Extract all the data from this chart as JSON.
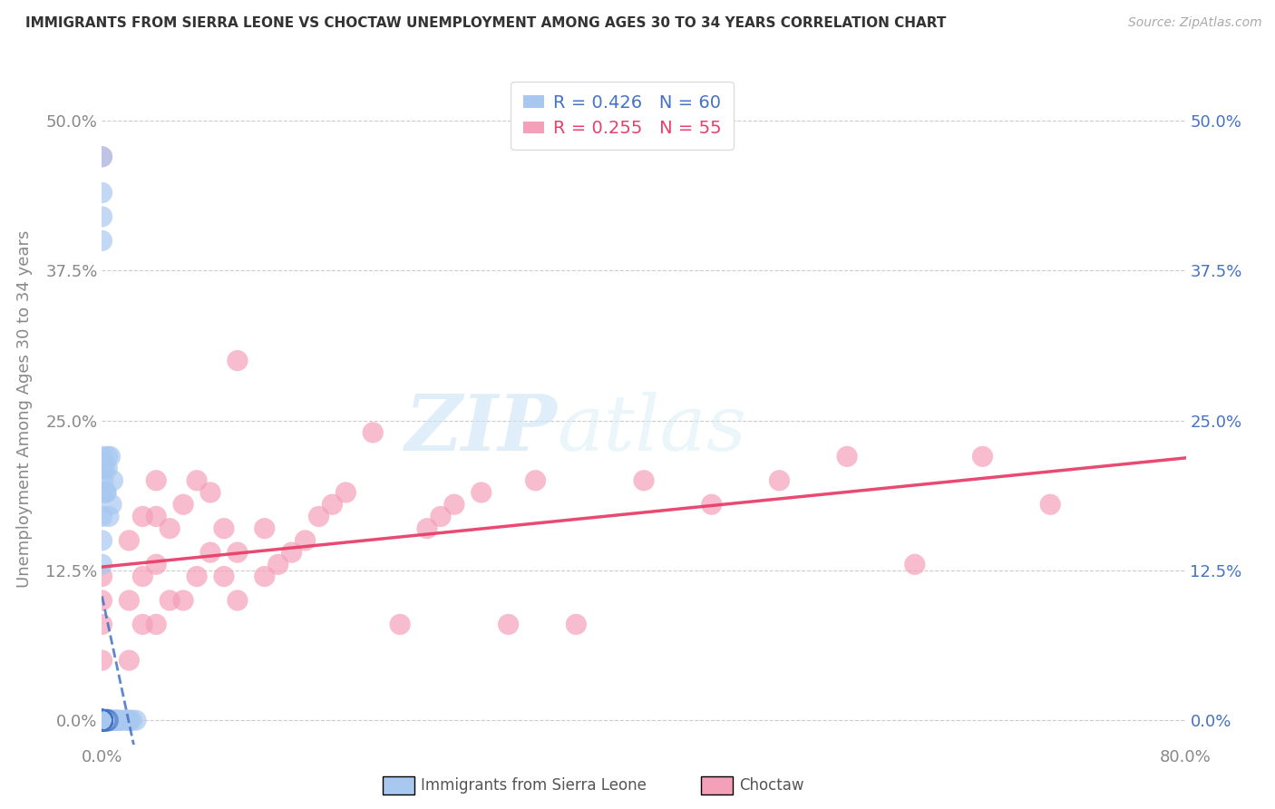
{
  "title": "IMMIGRANTS FROM SIERRA LEONE VS CHOCTAW UNEMPLOYMENT AMONG AGES 30 TO 34 YEARS CORRELATION CHART",
  "source": "Source: ZipAtlas.com",
  "ylabel": "Unemployment Among Ages 30 to 34 years",
  "ytick_labels": [
    "0.0%",
    "12.5%",
    "25.0%",
    "37.5%",
    "50.0%"
  ],
  "ytick_values": [
    0.0,
    0.125,
    0.25,
    0.375,
    0.5
  ],
  "xlim": [
    0.0,
    0.8
  ],
  "ylim": [
    -0.02,
    0.54
  ],
  "legend_blue_R": "R = 0.426",
  "legend_blue_N": "N = 60",
  "legend_pink_R": "R = 0.255",
  "legend_pink_N": "N = 55",
  "legend_label_blue": "Immigrants from Sierra Leone",
  "legend_label_pink": "Choctaw",
  "blue_color": "#a8c8f0",
  "pink_color": "#f4a0b8",
  "blue_line_color": "#4472c4",
  "pink_line_color": "#e8406a",
  "watermark_zip": "ZIP",
  "watermark_atlas": "atlas",
  "blue_scatter_x": [
    0.0,
    0.0,
    0.0,
    0.0,
    0.0,
    0.0,
    0.0,
    0.0,
    0.0,
    0.0,
    0.0,
    0.0,
    0.0,
    0.0,
    0.0,
    0.0,
    0.0,
    0.0,
    0.0,
    0.0,
    0.002,
    0.003,
    0.004,
    0.005,
    0.005,
    0.006,
    0.007,
    0.008,
    0.009,
    0.01,
    0.01,
    0.011,
    0.012,
    0.013,
    0.015,
    0.018,
    0.02,
    0.02,
    0.022,
    0.025,
    0.003,
    0.004,
    0.005,
    0.006,
    0.007,
    0.008,
    0.001,
    0.002,
    0.003,
    0.004,
    0.0,
    0.0,
    0.0,
    0.0,
    0.0,
    0.0,
    0.0,
    0.0,
    0.0,
    0.0
  ],
  "blue_scatter_y": [
    0.0,
    0.0,
    0.0,
    0.0,
    0.0,
    0.0,
    0.0,
    0.0,
    0.0,
    0.0,
    0.0,
    0.0,
    0.0,
    0.0,
    0.0,
    0.0,
    0.0,
    0.0,
    0.0,
    0.0,
    0.0,
    0.0,
    0.0,
    0.0,
    0.0,
    0.0,
    0.0,
    0.0,
    0.0,
    0.0,
    0.0,
    0.0,
    0.0,
    0.0,
    0.0,
    0.0,
    0.0,
    0.0,
    0.0,
    0.0,
    0.19,
    0.21,
    0.17,
    0.22,
    0.18,
    0.2,
    0.2,
    0.21,
    0.19,
    0.22,
    0.47,
    0.44,
    0.42,
    0.4,
    0.22,
    0.21,
    0.19,
    0.17,
    0.15,
    0.13
  ],
  "pink_scatter_x": [
    0.0,
    0.0,
    0.0,
    0.0,
    0.0,
    0.0,
    0.0,
    0.0,
    0.02,
    0.02,
    0.02,
    0.03,
    0.03,
    0.03,
    0.04,
    0.04,
    0.04,
    0.04,
    0.05,
    0.05,
    0.06,
    0.06,
    0.07,
    0.07,
    0.08,
    0.08,
    0.09,
    0.09,
    0.1,
    0.1,
    0.1,
    0.12,
    0.12,
    0.13,
    0.14,
    0.15,
    0.16,
    0.17,
    0.18,
    0.2,
    0.22,
    0.24,
    0.25,
    0.26,
    0.28,
    0.3,
    0.32,
    0.35,
    0.4,
    0.45,
    0.5,
    0.55,
    0.6,
    0.65,
    0.7
  ],
  "pink_scatter_y": [
    0.0,
    0.0,
    0.0,
    0.05,
    0.08,
    0.1,
    0.12,
    0.47,
    0.05,
    0.1,
    0.15,
    0.08,
    0.12,
    0.17,
    0.08,
    0.13,
    0.17,
    0.2,
    0.1,
    0.16,
    0.1,
    0.18,
    0.12,
    0.2,
    0.14,
    0.19,
    0.12,
    0.16,
    0.1,
    0.14,
    0.3,
    0.12,
    0.16,
    0.13,
    0.14,
    0.15,
    0.17,
    0.18,
    0.19,
    0.24,
    0.08,
    0.16,
    0.17,
    0.18,
    0.19,
    0.08,
    0.2,
    0.08,
    0.2,
    0.18,
    0.2,
    0.22,
    0.13,
    0.22,
    0.18
  ]
}
